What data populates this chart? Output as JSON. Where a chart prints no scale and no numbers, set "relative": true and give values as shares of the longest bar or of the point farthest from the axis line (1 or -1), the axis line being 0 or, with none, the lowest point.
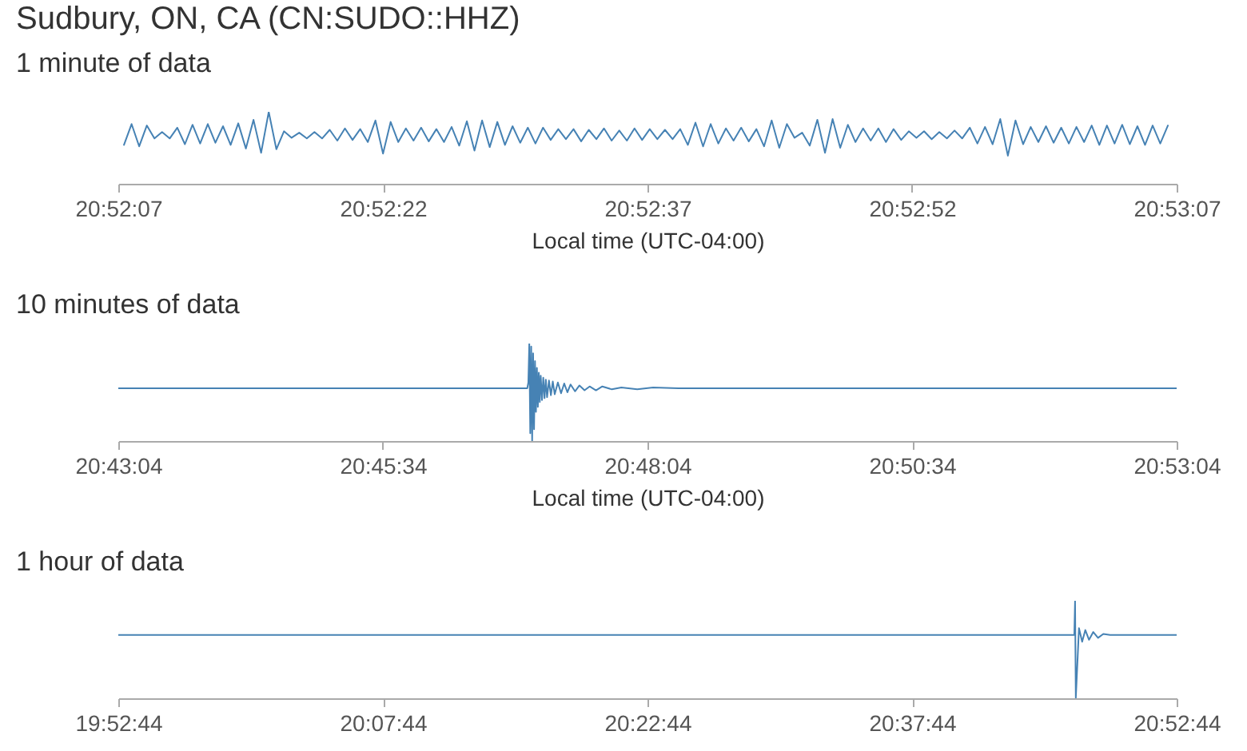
{
  "chart_data": [
    {
      "type": "line",
      "title": "Sudbury, ON, CA (CN:SUDO::HHZ)",
      "subtitle": "1 minute of data",
      "xlabel": "Local time (UTC-04:00)",
      "relative": true,
      "xlim": [
        20.868611,
        20.885278
      ],
      "xticks": [
        {
          "value": 20.868611,
          "label": "20:52:07"
        },
        {
          "value": 20.872778,
          "label": "20:52:22"
        },
        {
          "value": 20.876944,
          "label": "20:52:37"
        },
        {
          "value": 20.881111,
          "label": "20:52:52"
        },
        {
          "value": 20.885278,
          "label": "20:53:07"
        }
      ],
      "x": [
        20.8687,
        20.86882,
        20.86894,
        20.86906,
        20.86918,
        20.8693,
        20.86942,
        20.86954,
        20.86966,
        20.86978,
        20.8699,
        20.87002,
        20.87014,
        20.87026,
        20.87038,
        20.8705,
        20.87062,
        20.87074,
        20.87086,
        20.87098,
        20.8711,
        20.87122,
        20.87134,
        20.87146,
        20.87158,
        20.8717,
        20.87182,
        20.87194,
        20.87206,
        20.87218,
        20.8723,
        20.87242,
        20.87254,
        20.87266,
        20.87278,
        20.8729,
        20.87302,
        20.87314,
        20.87326,
        20.87338,
        20.8735,
        20.87362,
        20.87374,
        20.87386,
        20.87398,
        20.8741,
        20.87422,
        20.87434,
        20.87446,
        20.87458,
        20.8747,
        20.87482,
        20.87494,
        20.87506,
        20.87518,
        20.8753,
        20.87542,
        20.87554,
        20.87566,
        20.87578,
        20.8759,
        20.87602,
        20.87614,
        20.87626,
        20.87638,
        20.8765,
        20.87662,
        20.87674,
        20.87686,
        20.87698,
        20.8771,
        20.87722,
        20.87734,
        20.87746,
        20.87758,
        20.8777,
        20.87782,
        20.87794,
        20.87806,
        20.87818,
        20.8783,
        20.87842,
        20.87854,
        20.87866,
        20.87878,
        20.8789,
        20.87902,
        20.87914,
        20.87926,
        20.87938,
        20.8795,
        20.87962,
        20.87974,
        20.87986,
        20.87998,
        20.8801,
        20.88022,
        20.88034,
        20.88046,
        20.88058,
        20.8807,
        20.88082,
        20.88094,
        20.88106,
        20.88118,
        20.8813,
        20.88142,
        20.88154,
        20.88166,
        20.88178,
        20.8819,
        20.88202,
        20.88214,
        20.88226,
        20.88238,
        20.8825,
        20.88262,
        20.88274,
        20.88286,
        20.88298,
        20.8831,
        20.88322,
        20.88334,
        20.88346,
        20.88358,
        20.8837,
        20.88382,
        20.88394,
        20.88406,
        20.88418,
        20.8843,
        20.88442,
        20.88454,
        20.88466,
        20.88478,
        20.8849,
        20.88502,
        20.88514
      ],
      "series": [
        {
          "color": "#4682b4",
          "values": [
            0.54,
            0.83,
            0.52,
            0.81,
            0.63,
            0.72,
            0.63,
            0.78,
            0.55,
            0.82,
            0.56,
            0.83,
            0.57,
            0.8,
            0.54,
            0.84,
            0.49,
            0.89,
            0.43,
            1.0,
            0.48,
            0.73,
            0.64,
            0.71,
            0.63,
            0.72,
            0.63,
            0.75,
            0.6,
            0.77,
            0.61,
            0.76,
            0.58,
            0.88,
            0.42,
            0.86,
            0.58,
            0.77,
            0.6,
            0.78,
            0.59,
            0.76,
            0.58,
            0.79,
            0.53,
            0.87,
            0.46,
            0.88,
            0.51,
            0.86,
            0.54,
            0.8,
            0.57,
            0.78,
            0.56,
            0.78,
            0.61,
            0.76,
            0.62,
            0.76,
            0.59,
            0.75,
            0.62,
            0.77,
            0.6,
            0.74,
            0.6,
            0.77,
            0.61,
            0.76,
            0.62,
            0.75,
            0.62,
            0.76,
            0.54,
            0.85,
            0.52,
            0.83,
            0.56,
            0.77,
            0.6,
            0.78,
            0.59,
            0.76,
            0.52,
            0.88,
            0.5,
            0.83,
            0.64,
            0.71,
            0.53,
            0.89,
            0.43,
            0.9,
            0.5,
            0.82,
            0.58,
            0.77,
            0.6,
            0.77,
            0.58,
            0.76,
            0.61,
            0.73,
            0.64,
            0.73,
            0.62,
            0.72,
            0.63,
            0.74,
            0.63,
            0.78,
            0.56,
            0.79,
            0.55,
            0.9,
            0.39,
            0.88,
            0.55,
            0.79,
            0.58,
            0.8,
            0.57,
            0.78,
            0.56,
            0.79,
            0.58,
            0.81,
            0.54,
            0.81,
            0.56,
            0.82,
            0.55,
            0.8,
            0.54,
            0.81,
            0.56,
            0.81
          ]
        }
      ]
    },
    {
      "type": "line",
      "title": "10 minutes of data",
      "xlabel": "Local time (UTC-04:00)",
      "relative": true,
      "xlim": [
        20.717778,
        20.884444
      ],
      "xticks": [
        {
          "value": 20.717778,
          "label": "20:43:04"
        },
        {
          "value": 20.759444,
          "label": "20:45:34"
        },
        {
          "value": 20.801111,
          "label": "20:48:04"
        },
        {
          "value": 20.842778,
          "label": "20:50:34"
        },
        {
          "value": 20.884444,
          "label": "20:53:04"
        }
      ],
      "x": [
        20.71778,
        20.72909,
        20.74383,
        20.75858,
        20.77333,
        20.78218,
        20.78235,
        20.7825,
        20.78265,
        20.7828,
        20.78295,
        20.7831,
        20.78325,
        20.7834,
        20.78355,
        20.7837,
        20.78385,
        20.784,
        20.78415,
        20.7843,
        20.7845,
        20.7847,
        20.7849,
        20.7851,
        20.7853,
        20.7856,
        20.7859,
        20.7862,
        20.7865,
        20.787,
        20.7875,
        20.788,
        20.7885,
        20.789,
        20.7897,
        20.7904,
        20.7912,
        20.792,
        20.793,
        20.794,
        20.7955,
        20.797,
        20.7995,
        20.802,
        20.806,
        20.82,
        20.84,
        20.86,
        20.88444
      ],
      "series": [
        {
          "color": "#4682b4",
          "values": [
            0.54,
            0.54,
            0.54,
            0.54,
            0.54,
            0.54,
            0.6,
            1.0,
            0.08,
            0.97,
            0.0,
            0.9,
            0.12,
            0.82,
            0.3,
            0.75,
            0.35,
            0.7,
            0.4,
            0.67,
            0.42,
            0.65,
            0.44,
            0.63,
            0.45,
            0.62,
            0.47,
            0.61,
            0.48,
            0.6,
            0.49,
            0.59,
            0.5,
            0.58,
            0.51,
            0.57,
            0.52,
            0.56,
            0.52,
            0.56,
            0.53,
            0.55,
            0.53,
            0.55,
            0.54,
            0.54,
            0.54,
            0.54,
            0.54
          ]
        }
      ]
    },
    {
      "type": "line",
      "title": "1 hour of data",
      "relative": true,
      "xlim": [
        19.878889,
        20.878889
      ],
      "xticks": [
        {
          "value": 19.878889,
          "label": "19:52:44"
        },
        {
          "value": 20.128889,
          "label": "20:07:44"
        },
        {
          "value": 20.378889,
          "label": "20:22:44"
        },
        {
          "value": 20.628889,
          "label": "20:37:44"
        },
        {
          "value": 20.878889,
          "label": "20:52:44"
        }
      ],
      "x": [
        19.87889,
        20.0,
        20.2,
        20.4,
        20.6,
        20.7822,
        20.7829,
        20.7836,
        20.7866,
        20.7896,
        20.7926,
        20.7961,
        20.8001,
        20.8046,
        20.8096,
        20.816,
        20.85,
        20.87888
      ],
      "series": [
        {
          "color": "#4682b4",
          "values": [
            0.65,
            0.65,
            0.65,
            0.65,
            0.65,
            0.65,
            1.0,
            0.0,
            0.72,
            0.58,
            0.7,
            0.6,
            0.68,
            0.62,
            0.66,
            0.65,
            0.65,
            0.65
          ]
        }
      ]
    }
  ]
}
